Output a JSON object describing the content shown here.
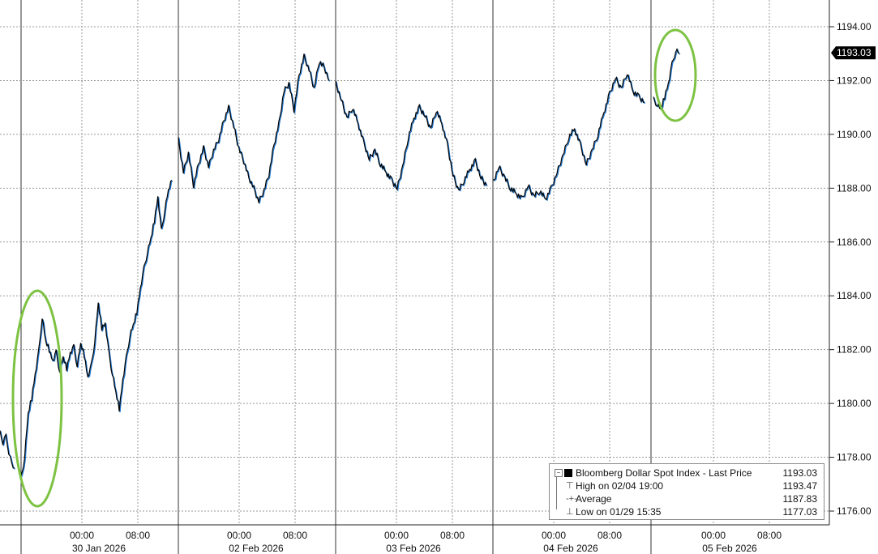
{
  "chart_data": {
    "type": "line",
    "title": "",
    "xlabel": "",
    "ylabel": "",
    "ylim": [
      1175.5,
      1194.5
    ],
    "y_ticks": [
      "1194.00",
      "1192.00",
      "1190.00",
      "1188.00",
      "1186.00",
      "1184.00",
      "1182.00",
      "1180.00",
      "1178.00",
      "1176.00"
    ],
    "y_tick_values": [
      1194,
      1192,
      1190,
      1188,
      1186,
      1184,
      1182,
      1180,
      1178,
      1176
    ],
    "x_time_labels": [
      "00:00",
      "08:00",
      "00:00",
      "08:00",
      "00:00",
      "08:00",
      "00:00",
      "08:00",
      "00:00",
      "08:00"
    ],
    "x_date_labels": [
      "30 Jan 2026",
      "02 Feb 2026",
      "03 Feb 2026",
      "04 Feb 2026",
      "05 Feb 2026"
    ],
    "last_price_label": "1193.03",
    "grid": true,
    "legend_position": "bottom-right",
    "colors": {
      "line": "#000000",
      "highlight": "#1f77d0",
      "circle": "#7dc242",
      "grid": "#999999"
    },
    "series": [
      {
        "name": "Bloomberg Dollar Spot Index - Last Price",
        "segments": [
          {
            "values": [
              1178.9,
              1178.5,
              1178.8,
              1178.2,
              1177.8,
              1177.6
            ]
          },
          {
            "values": [
              1177.2,
              1178.0,
              1179.6,
              1180.2,
              1181.1,
              1181.9,
              1183.2,
              1182.3,
              1182.0,
              1181.6,
              1181.9,
              1181.2,
              1181.7,
              1181.3,
              1181.9,
              1182.1,
              1181.4,
              1182.2,
              1181.8,
              1181.0,
              1181.4,
              1182.3,
              1183.7,
              1182.8,
              1183.0,
              1181.9,
              1181.1,
              1180.4,
              1179.8,
              1180.9,
              1181.7,
              1182.5,
              1182.9,
              1183.4,
              1184.3,
              1185.0,
              1185.6,
              1186.1,
              1186.8,
              1187.7,
              1186.4,
              1187.2,
              1187.9,
              1188.3
            ]
          },
          {
            "values": [
              1189.8,
              1188.6,
              1189.3,
              1188.1,
              1188.9,
              1189.5,
              1188.8,
              1189.4,
              1189.8,
              1190.5,
              1191.0,
              1190.3,
              1189.5,
              1189.0,
              1188.4,
              1188.0,
              1187.5,
              1187.9,
              1188.5,
              1189.6,
              1190.4,
              1191.6,
              1191.9,
              1190.9,
              1192.2,
              1192.9,
              1192.4,
              1191.7,
              1192.7,
              1192.5,
              1192.0
            ]
          },
          {
            "values": [
              1191.9,
              1191.3,
              1190.6,
              1191.0,
              1190.4,
              1189.7,
              1189.1,
              1189.4,
              1188.9,
              1188.6,
              1188.3,
              1188.0,
              1188.8,
              1189.9,
              1190.6,
              1191.0,
              1190.7,
              1190.2,
              1190.9,
              1190.4,
              1189.6,
              1188.5,
              1187.9,
              1188.3,
              1188.7,
              1189.0,
              1188.4,
              1188.1
            ]
          },
          {
            "values": [
              1188.2,
              1188.8,
              1188.4,
              1188.0,
              1187.8,
              1187.6,
              1188.1,
              1187.7,
              1187.9,
              1187.6,
              1188.0,
              1188.6,
              1189.2,
              1189.9,
              1190.2,
              1189.6,
              1188.9,
              1189.4,
              1190.0,
              1190.8,
              1191.5,
              1192.1,
              1191.7,
              1192.3,
              1191.6,
              1191.4,
              1191.2
            ]
          },
          {
            "values": [
              1191.3,
              1191.1,
              1190.9,
              1191.4,
              1191.9,
              1192.6,
              1193.1,
              1193.0
            ]
          }
        ]
      }
    ],
    "legend": {
      "main_label": "Bloomberg Dollar Spot Index - Last Price",
      "main_value": "1193.03",
      "rows": [
        {
          "label": "High on 02/04 19:00",
          "value": "1193.47"
        },
        {
          "label": "Average",
          "value": "1187.83"
        },
        {
          "label": "Low on 01/29 15:35",
          "value": "1177.03"
        }
      ]
    }
  }
}
